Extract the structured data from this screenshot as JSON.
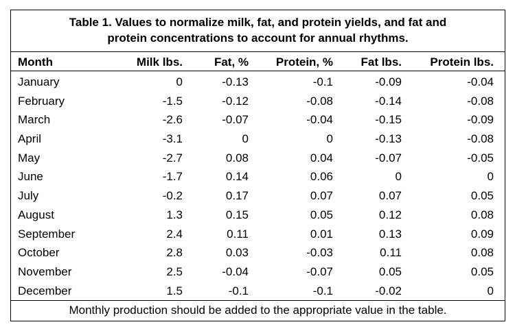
{
  "title": {
    "line1": "Table 1. Values to normalize milk, fat, and protein yields, and fat and",
    "line2": "protein concentrations to account for annual rhythms."
  },
  "columns": [
    "Month",
    "Milk lbs.",
    "Fat, %",
    "Protein, %",
    "Fat lbs.",
    "Protein lbs."
  ],
  "rows": [
    [
      "January",
      "0",
      "-0.13",
      "-0.1",
      "-0.09",
      "-0.04"
    ],
    [
      "February",
      "-1.5",
      "-0.12",
      "-0.08",
      "-0.14",
      "-0.08"
    ],
    [
      "March",
      "-2.6",
      "-0.07",
      "-0.04",
      "-0.15",
      "-0.09"
    ],
    [
      "April",
      "-3.1",
      "0",
      "0",
      "-0.13",
      "-0.08"
    ],
    [
      "May",
      "-2.7",
      "0.08",
      "0.04",
      "-0.07",
      "-0.05"
    ],
    [
      "June",
      "-1.7",
      "0.14",
      "0.06",
      "0",
      "0"
    ],
    [
      "July",
      "-0.2",
      "0.17",
      "0.07",
      "0.07",
      "0.05"
    ],
    [
      "August",
      "1.3",
      "0.15",
      "0.05",
      "0.12",
      "0.08"
    ],
    [
      "September",
      "2.4",
      "0.11",
      "0.01",
      "0.13",
      "0.09"
    ],
    [
      "October",
      "2.8",
      "0.03",
      "-0.03",
      "0.11",
      "0.08"
    ],
    [
      "November",
      "2.5",
      "-0.04",
      "-0.07",
      "0.05",
      "0.05"
    ],
    [
      "December",
      "1.5",
      "-0.1",
      "-0.1",
      "-0.02",
      "0"
    ]
  ],
  "footer": "Monthly production should be added to the appropriate value in the table."
}
